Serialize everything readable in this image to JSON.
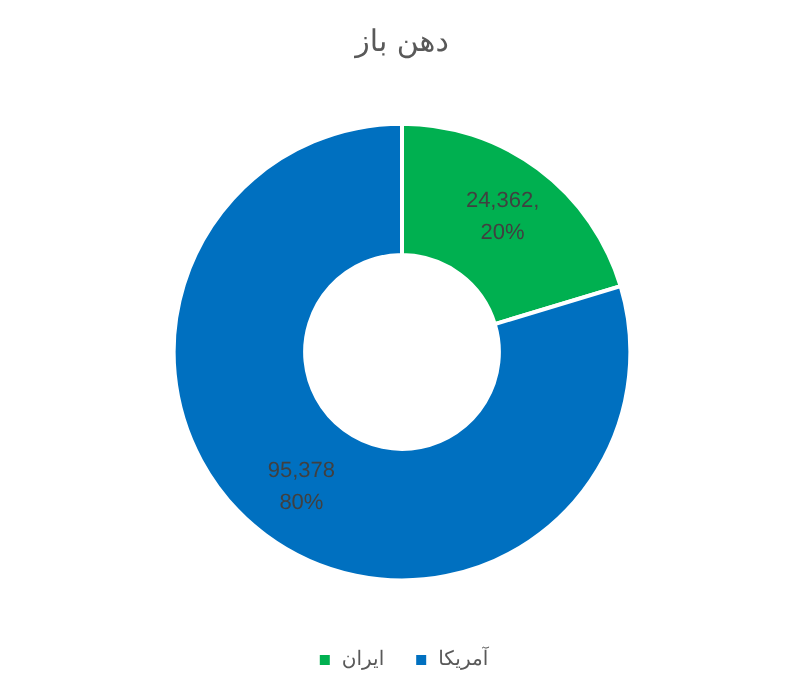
{
  "chart_data": {
    "type": "donut",
    "title": "دهن باز",
    "categories": [
      "ایران",
      "آمریکا"
    ],
    "values": [
      24362,
      95378
    ],
    "colors": [
      "#00b050",
      "#0070c0"
    ],
    "value_labels": [
      "24,362,\n20%",
      "95,378\n80%"
    ],
    "legend": "bottom"
  }
}
